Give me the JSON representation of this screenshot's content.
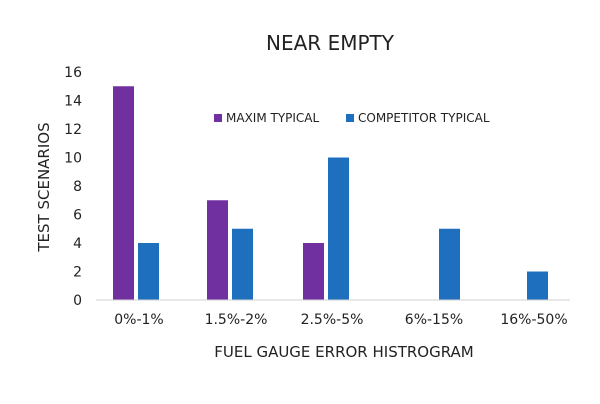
{
  "chart_data": {
    "type": "bar",
    "title": "NEAR EMPTY",
    "xlabel": "FUEL GAUGE ERROR HISTROGRAM",
    "ylabel": "TEST SCENARIOS",
    "categories": [
      "0%-1%",
      "1.5%-2%",
      "2.5%-5%",
      "6%-15%",
      "16%-50%"
    ],
    "series": [
      {
        "name": "MAXIM TYPICAL",
        "color": "#7030a0",
        "values": [
          15,
          7,
          4,
          0,
          0
        ]
      },
      {
        "name": "COMPETITOR TYPICAL",
        "color": "#1f6fbf",
        "values": [
          4,
          5,
          10,
          5,
          2
        ]
      }
    ],
    "ylim": [
      0,
      16
    ],
    "yticks": [
      0,
      2,
      4,
      6,
      8,
      10,
      12,
      14,
      16
    ],
    "grid": false,
    "legend_position": "top-center"
  }
}
